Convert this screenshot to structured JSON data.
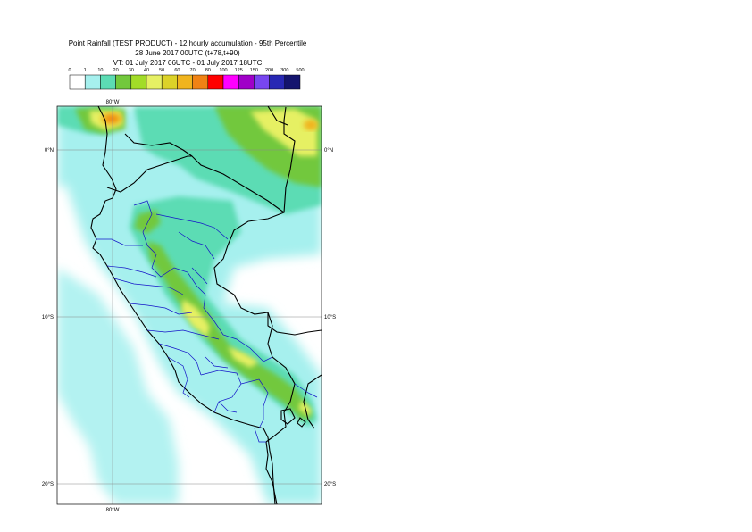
{
  "title": {
    "line1": "Point Rainfall (TEST PRODUCT) - 12 hourly accumulation - 95th Percentile",
    "line2": "28 June 2017 00UTC (t+78,t+90)",
    "line3": "VT: 01 July 2017 06UTC - 01 July 2017 18UTC"
  },
  "legend": {
    "labels": [
      "0",
      "1",
      "10",
      "20",
      "30",
      "40",
      "50",
      "60",
      "70",
      "80",
      "100",
      "125",
      "150",
      "200",
      "300",
      "500"
    ],
    "colors": [
      "#ffffff",
      "#a6f0ee",
      "#5cdcb4",
      "#72c83c",
      "#a2dc28",
      "#e6f064",
      "#dcd228",
      "#f0b41e",
      "#f08214",
      "#ff0000",
      "#ff00ff",
      "#a000c8",
      "#7846f0",
      "#2828b4",
      "#14146e"
    ]
  },
  "map": {
    "grid_labels": {
      "top_lon": "80°W",
      "bottom_lon": "80°W",
      "lat_0_left": "0°N",
      "lat_0_right": "0°N",
      "lat_10_left": "10°S",
      "lat_10_right": "10°S",
      "lat_20_left": "20°S",
      "lat_20_right": "20°S"
    }
  }
}
